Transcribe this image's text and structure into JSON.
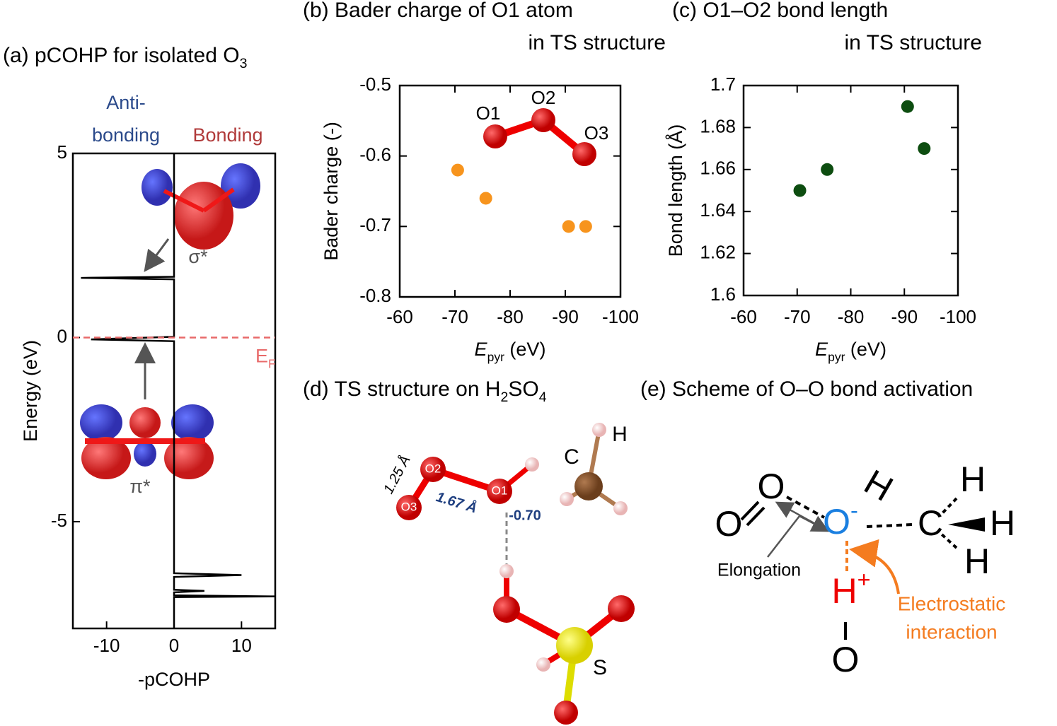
{
  "chart_data": [
    {
      "type": "line",
      "title": [
        "(a) pCOHP for isolated O",
        "3"
      ],
      "xlabel": "-pCOHP",
      "ylabel": "Energy (eV)",
      "xlim": [
        -15,
        15
      ],
      "ylim": [
        -7.9,
        5
      ],
      "xticks": [
        -10,
        0,
        10
      ],
      "yticks": [
        -5,
        0,
        5
      ],
      "series": [
        {
          "color": "#000000",
          "x": [
            0,
            0,
            -13.8,
            0,
            0,
            -12.3,
            0,
            0,
            10,
            0,
            0,
            4.5,
            0,
            0,
            15,
            0,
            0
          ],
          "values": [
            5,
            1.65,
            1.62,
            1.58,
            0.02,
            -0.05,
            -0.1,
            -6.4,
            -6.45,
            -6.5,
            -6.85,
            -6.88,
            -6.92,
            -7.0,
            -7.03,
            -7.05,
            -7.9
          ]
        }
      ],
      "fermi_level": 0,
      "fermi_label": [
        "E",
        "F"
      ],
      "fermi_color": "#e86a6a",
      "annotations": {
        "antibonding": [
          "Anti-",
          "bonding"
        ],
        "bonding": "Bonding",
        "sigma": "σ*",
        "pi": "π*"
      }
    },
    {
      "type": "scatter",
      "title": [
        "(b) Bader charge of O1 atom",
        "in TS structure"
      ],
      "xlabel": [
        "E",
        "pyr",
        " (eV)"
      ],
      "ylabel": "Bader charge (-)",
      "xlim": [
        -60,
        -100
      ],
      "ylim": [
        -0.8,
        -0.5
      ],
      "xticks": [
        -60,
        -70,
        -80,
        -90,
        -100
      ],
      "yticks": [
        -0.8,
        -0.7,
        -0.6,
        -0.5
      ],
      "series": [
        {
          "color": "#f7941d",
          "x": [
            -70.5,
            -75.6,
            -90.6,
            -93.7
          ],
          "values": [
            -0.62,
            -0.66,
            -0.7,
            -0.7
          ]
        }
      ],
      "inset_labels": [
        "O1",
        "O2",
        "O3"
      ]
    },
    {
      "type": "scatter",
      "title": [
        "(c) O1–O2 bond length",
        "in TS structure"
      ],
      "xlabel": [
        "E",
        "pyr",
        " (eV)"
      ],
      "ylabel": "Bond length (Å)",
      "xlim": [
        -60,
        -100
      ],
      "ylim": [
        1.6,
        1.7
      ],
      "xticks": [
        -60,
        -70,
        -80,
        -90,
        -100
      ],
      "yticks": [
        1.6,
        1.62,
        1.64,
        1.66,
        1.68,
        1.7
      ],
      "series": [
        {
          "color": "#0d4d10",
          "x": [
            -70.5,
            -75.6,
            -90.6,
            -93.7
          ],
          "values": [
            1.65,
            1.66,
            1.69,
            1.67
          ]
        }
      ]
    }
  ],
  "diagrams": {
    "d": {
      "title": [
        "(d) TS structure on H",
        "2",
        "SO",
        "4"
      ],
      "labels": {
        "o_o_short": "1.25 Å",
        "o2": "O2",
        "o1": "O1",
        "o3": "O3",
        "o_o_long": "1.67 Å",
        "charge": "-0.70",
        "c": "C",
        "h": "H",
        "s": "S"
      }
    },
    "e": {
      "title": "(e) Scheme of O–O bond activation",
      "labels": {
        "o_top": "O",
        "o_bottom": "O",
        "o_minus": [
          "O",
          "-"
        ],
        "h_oh": "H",
        "c": "C",
        "h1": "H",
        "h2": "H",
        "h3": "H",
        "h_plus": [
          "H",
          "+"
        ],
        "o_acid": "O",
        "elongation": "Elongation",
        "electrostatic": [
          "Electrostatic",
          "interaction"
        ]
      }
    }
  }
}
